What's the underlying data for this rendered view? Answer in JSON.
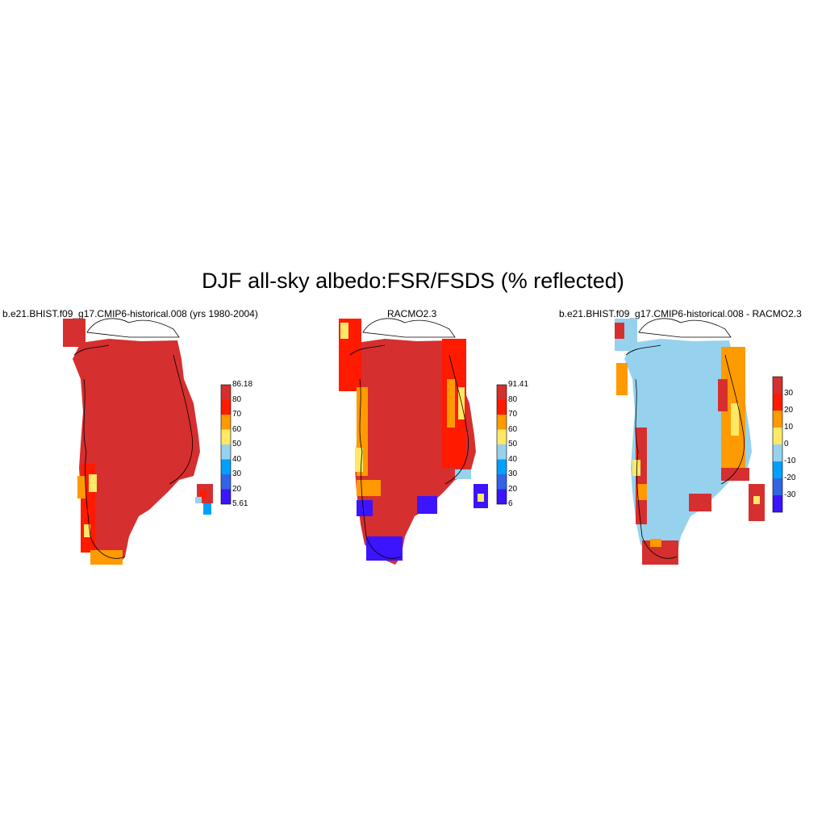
{
  "title": "DJF all-sky albedo:FSR/FSDS (% reflected)",
  "panels": [
    {
      "title": "b.e21.BHIST.f09_g17.CMIP6-historical.008 (yrs 1980-2004)",
      "colorbar": {
        "labels": [
          "86.18",
          "80",
          "70",
          "60",
          "50",
          "40",
          "30",
          "20",
          "5.61"
        ],
        "colors": [
          "#d62f2f",
          "#ff1a00",
          "#ff9a00",
          "#ffe866",
          "#96d2ee",
          "#00a0ff",
          "#3264e6",
          "#3c14ff"
        ]
      }
    },
    {
      "title": "RACMO2.3",
      "colorbar": {
        "labels": [
          "91.41",
          "80",
          "70",
          "60",
          "50",
          "40",
          "30",
          "20",
          "6"
        ],
        "colors": [
          "#d62f2f",
          "#ff1a00",
          "#ff9a00",
          "#ffe866",
          "#96d2ee",
          "#00a0ff",
          "#3264e6",
          "#3c14ff"
        ]
      }
    },
    {
      "title": "b.e21.BHIST.f09_g17.CMIP6-historical.008 - RACMO2.3",
      "colorbar": {
        "labels": [
          "30",
          "20",
          "10",
          "0",
          "-10",
          "-20",
          "-30"
        ],
        "colors": [
          "#d62f2f",
          "#ff1a00",
          "#ff9a00",
          "#ffe866",
          "#96d2ee",
          "#00a0ff",
          "#3264e6",
          "#3c14ff"
        ]
      }
    }
  ]
}
